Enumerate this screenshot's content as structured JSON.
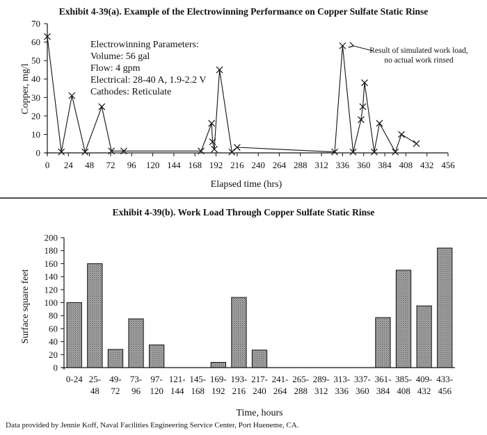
{
  "chart_data": [
    {
      "type": "line",
      "title": "Exhibit 4-39(a). Example of the Electrowinning Performance on Copper Sulfate Static Rinse",
      "xlabel": "Elapsed time (hrs)",
      "ylabel": "Copper, mg/l",
      "xlim": [
        0,
        456
      ],
      "ylim": [
        0,
        70
      ],
      "xticks": [
        0,
        24,
        48,
        72,
        96,
        120,
        144,
        168,
        192,
        216,
        240,
        264,
        288,
        312,
        336,
        360,
        384,
        408,
        432,
        456
      ],
      "yticks": [
        0,
        10,
        20,
        30,
        40,
        50,
        60,
        70
      ],
      "marker": "x",
      "grid": false,
      "legend": "none",
      "series": [
        {
          "x": [
            0,
            16,
            28,
            43,
            62,
            73,
            87,
            175,
            187,
            188,
            190,
            196,
            210,
            216,
            327,
            336,
            348,
            357,
            359,
            361,
            372,
            378,
            396,
            403,
            420
          ],
          "y": [
            63,
            0.5,
            31,
            0.5,
            25,
            1,
            1,
            1,
            16,
            6,
            2,
            45,
            0.5,
            3,
            0.5,
            58,
            0.5,
            18,
            25,
            38,
            0.5,
            16,
            0.5,
            10,
            5
          ]
        }
      ],
      "params": {
        "heading": "Electrowinning Parameters:",
        "volume": "Volume: 56 gal",
        "flow": "Flow: 4 gpm",
        "electrical": "Electrical: 28-40 A, 1.9-2.2 V",
        "cathodes": "Cathodes: Reticulate"
      },
      "annotation": {
        "line1": "Result of simulated work load,",
        "line2": "no actual work rinsed",
        "target_x": 336,
        "target_y": 58
      }
    },
    {
      "type": "bar",
      "title": "Exhibit 4-39(b). Work Load Through Copper Sulfate Static Rinse",
      "xlabel": "Time, hours",
      "ylabel": "Surface square feet",
      "ylim": [
        0,
        200
      ],
      "yticks": [
        0,
        20,
        40,
        60,
        80,
        100,
        120,
        140,
        160,
        180,
        200
      ],
      "grid": false,
      "legend": "none",
      "categories": [
        [
          "0-24",
          ""
        ],
        [
          "25-",
          "48"
        ],
        [
          "49-",
          "72"
        ],
        [
          "73-",
          "96"
        ],
        [
          "97-",
          "120"
        ],
        [
          "121-",
          "144"
        ],
        [
          "145-",
          "168"
        ],
        [
          "169-",
          "192"
        ],
        [
          "193-",
          "216"
        ],
        [
          "217-",
          "240"
        ],
        [
          "241-",
          "264"
        ],
        [
          "265-",
          "288"
        ],
        [
          "289-",
          "312"
        ],
        [
          "313-",
          "336"
        ],
        [
          "337-",
          "360"
        ],
        [
          "361-",
          "384"
        ],
        [
          "385-",
          "408"
        ],
        [
          "409-",
          "432"
        ],
        [
          "433-",
          "456"
        ]
      ],
      "values": [
        100,
        160,
        28,
        75,
        35,
        0,
        0,
        8,
        108,
        27,
        0,
        0,
        0,
        0,
        0,
        77,
        150,
        95,
        184
      ]
    }
  ],
  "footer": "Data provided by Jennie Koff, Naval Facilities Engineering Service Center, Port Hueneme, CA.",
  "colors": {
    "ink": "#111111",
    "bar_fill": "#9a9a9a"
  }
}
